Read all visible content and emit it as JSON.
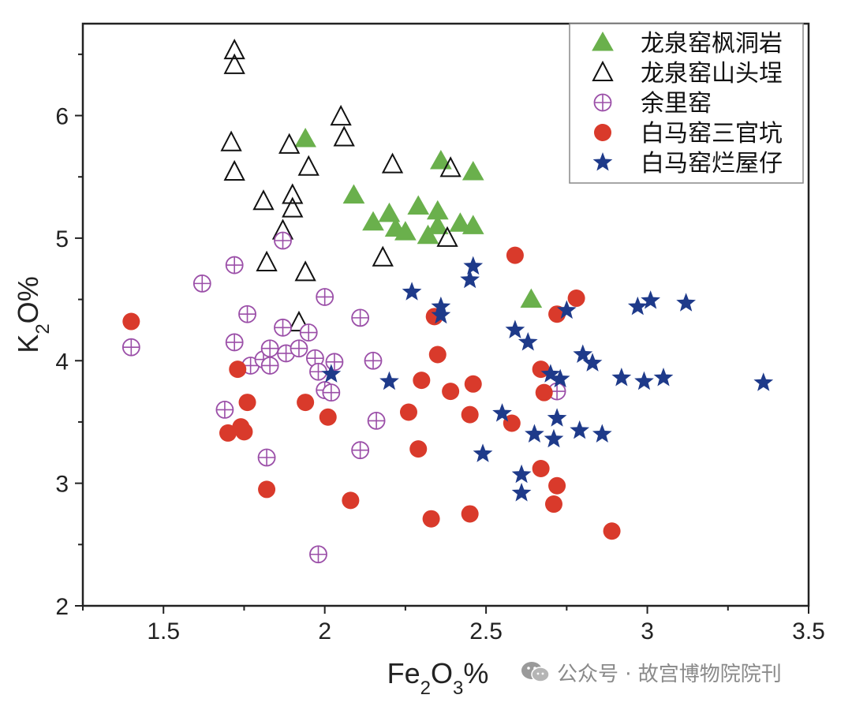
{
  "chart_data": {
    "type": "scatter",
    "title": "",
    "xlabel": "Fe2O3%",
    "ylabel": "K2O%",
    "xlim": [
      1.25,
      3.5
    ],
    "ylim": [
      2,
      6.75
    ],
    "x_ticks": [
      1.5,
      2,
      2.5,
      3,
      3.5
    ],
    "x_tick_labels": [
      "1.5",
      "2",
      "2.5",
      "3",
      "3.5"
    ],
    "y_ticks": [
      2,
      3,
      4,
      5,
      6
    ],
    "y_tick_labels": [
      "2",
      "3",
      "4",
      "5",
      "6"
    ],
    "legend_position": "top-right",
    "series": [
      {
        "name": "龙泉窑枫洞岩",
        "marker": "triangle-filled",
        "color": "#6ab04c",
        "points": [
          [
            1.94,
            5.81
          ],
          [
            2.09,
            5.35
          ],
          [
            2.15,
            5.13
          ],
          [
            2.2,
            5.2
          ],
          [
            2.22,
            5.08
          ],
          [
            2.25,
            5.05
          ],
          [
            2.29,
            5.26
          ],
          [
            2.32,
            5.02
          ],
          [
            2.35,
            5.1
          ],
          [
            2.35,
            5.22
          ],
          [
            2.36,
            5.63
          ],
          [
            2.42,
            5.12
          ],
          [
            2.46,
            5.1
          ],
          [
            2.46,
            5.54
          ],
          [
            2.64,
            4.5
          ]
        ]
      },
      {
        "name": "龙泉窑山头埕",
        "marker": "triangle-open",
        "color": "#111111",
        "points": [
          [
            1.72,
            6.53
          ],
          [
            1.72,
            6.41
          ],
          [
            1.71,
            5.78
          ],
          [
            1.72,
            5.54
          ],
          [
            1.81,
            5.3
          ],
          [
            1.82,
            4.8
          ],
          [
            1.87,
            5.06
          ],
          [
            1.89,
            5.76
          ],
          [
            1.9,
            5.35
          ],
          [
            1.9,
            5.24
          ],
          [
            1.94,
            4.72
          ],
          [
            1.95,
            5.58
          ],
          [
            1.92,
            4.31
          ],
          [
            2.05,
            5.99
          ],
          [
            2.06,
            5.82
          ],
          [
            2.18,
            4.84
          ],
          [
            2.21,
            5.6
          ],
          [
            2.38,
            5.0
          ],
          [
            2.39,
            5.57
          ]
        ]
      },
      {
        "name": "余里窑",
        "marker": "circle-plus-open",
        "color": "#9b4fa8",
        "points": [
          [
            1.4,
            4.11
          ],
          [
            1.62,
            4.63
          ],
          [
            1.69,
            3.6
          ],
          [
            1.72,
            4.78
          ],
          [
            1.72,
            4.15
          ],
          [
            1.76,
            4.38
          ],
          [
            1.77,
            3.96
          ],
          [
            1.81,
            4.01
          ],
          [
            1.82,
            3.21
          ],
          [
            1.83,
            4.1
          ],
          [
            1.83,
            3.96
          ],
          [
            1.87,
            4.98
          ],
          [
            1.87,
            4.27
          ],
          [
            1.88,
            4.06
          ],
          [
            1.92,
            4.1
          ],
          [
            1.95,
            4.23
          ],
          [
            1.97,
            4.02
          ],
          [
            1.98,
            3.91
          ],
          [
            1.98,
            2.42
          ],
          [
            2.0,
            3.76
          ],
          [
            2.0,
            4.52
          ],
          [
            2.02,
            3.74
          ],
          [
            2.03,
            3.99
          ],
          [
            2.11,
            4.35
          ],
          [
            2.11,
            3.27
          ],
          [
            2.15,
            4.0
          ],
          [
            2.16,
            3.51
          ],
          [
            2.72,
            3.75
          ]
        ]
      },
      {
        "name": "白马窑三官坑",
        "marker": "circle-filled",
        "color": "#d93a2b",
        "points": [
          [
            1.4,
            4.32
          ],
          [
            1.7,
            3.41
          ],
          [
            1.73,
            3.93
          ],
          [
            1.74,
            3.46
          ],
          [
            1.75,
            3.42
          ],
          [
            1.76,
            3.66
          ],
          [
            1.82,
            2.95
          ],
          [
            1.94,
            3.66
          ],
          [
            2.01,
            3.54
          ],
          [
            2.08,
            2.86
          ],
          [
            2.26,
            3.58
          ],
          [
            2.29,
            3.28
          ],
          [
            2.3,
            3.84
          ],
          [
            2.33,
            2.71
          ],
          [
            2.34,
            4.36
          ],
          [
            2.35,
            4.05
          ],
          [
            2.39,
            3.75
          ],
          [
            2.45,
            3.56
          ],
          [
            2.45,
            2.75
          ],
          [
            2.46,
            3.81
          ],
          [
            2.58,
            3.49
          ],
          [
            2.59,
            4.86
          ],
          [
            2.67,
            3.12
          ],
          [
            2.67,
            3.93
          ],
          [
            2.68,
            3.74
          ],
          [
            2.71,
            2.83
          ],
          [
            2.72,
            4.38
          ],
          [
            2.72,
            2.98
          ],
          [
            2.78,
            4.51
          ],
          [
            2.89,
            2.61
          ]
        ]
      },
      {
        "name": "白马窑烂屋仔",
        "marker": "star",
        "color": "#1e3a8a",
        "points": [
          [
            2.02,
            3.89
          ],
          [
            2.2,
            3.83
          ],
          [
            2.27,
            4.56
          ],
          [
            2.36,
            4.44
          ],
          [
            2.36,
            4.37
          ],
          [
            2.45,
            4.66
          ],
          [
            2.46,
            4.77
          ],
          [
            2.49,
            3.24
          ],
          [
            2.55,
            3.57
          ],
          [
            2.59,
            4.25
          ],
          [
            2.61,
            3.07
          ],
          [
            2.61,
            2.92
          ],
          [
            2.63,
            4.15
          ],
          [
            2.65,
            3.4
          ],
          [
            2.7,
            3.89
          ],
          [
            2.71,
            3.36
          ],
          [
            2.72,
            3.53
          ],
          [
            2.73,
            3.85
          ],
          [
            2.75,
            4.41
          ],
          [
            2.79,
            3.43
          ],
          [
            2.8,
            4.05
          ],
          [
            2.83,
            3.98
          ],
          [
            2.86,
            3.4
          ],
          [
            2.92,
            3.86
          ],
          [
            2.97,
            4.44
          ],
          [
            2.99,
            3.83
          ],
          [
            3.01,
            4.49
          ],
          [
            3.05,
            3.86
          ],
          [
            3.12,
            4.47
          ],
          [
            3.36,
            3.82
          ]
        ]
      }
    ]
  },
  "watermark": {
    "icon": "wechat-icon",
    "text": "公众号 · 故宫博物院院刊"
  }
}
